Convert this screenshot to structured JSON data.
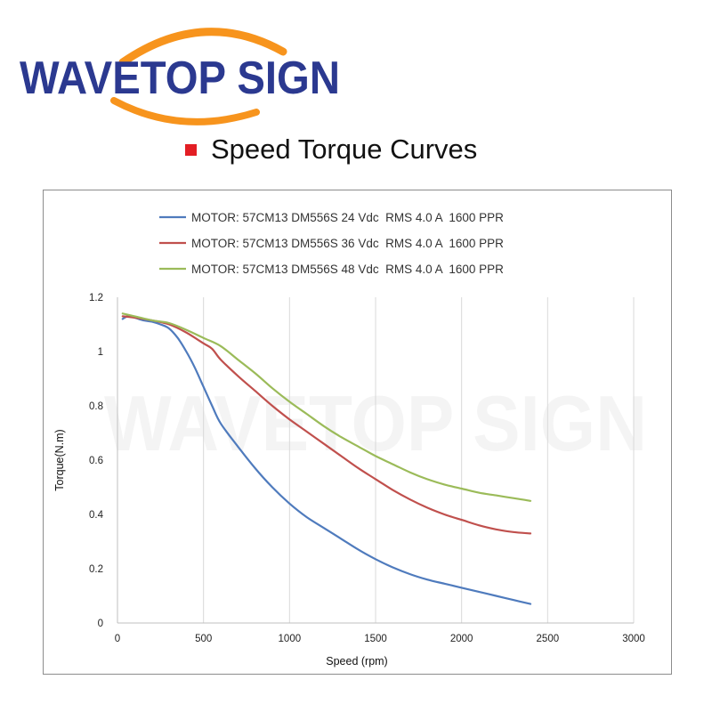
{
  "brand": {
    "name": "WAVETOP SIGN",
    "color": "#2b3990",
    "arc_color": "#f7941d",
    "watermark": "WAVETOP SIGN"
  },
  "heading": {
    "title": "Speed Torque Curves",
    "bullet_color": "#e31e24"
  },
  "chart_data": {
    "type": "line",
    "title": "",
    "xlabel": "Speed (rpm)",
    "ylabel": "Torque(N.m)",
    "xlim": [
      0,
      3000
    ],
    "ylim": [
      0,
      1.2
    ],
    "xticks": [
      0,
      500,
      1000,
      1500,
      2000,
      2500,
      3000
    ],
    "yticks": [
      0,
      0.2,
      0.4,
      0.6,
      0.8,
      1,
      1.2
    ],
    "xtick_labels": [
      "0",
      "500",
      "1000",
      "1500",
      "2000",
      "2500",
      "3000"
    ],
    "ytick_labels": [
      "0",
      "0.2",
      "0.4",
      "0.6",
      "0.8",
      "1",
      "1.2"
    ],
    "grid": "vertical",
    "legend_position": "top",
    "series": [
      {
        "name": "MOTOR: 57CM13 DM556S 24 Vdc  RMS 4.0 A  1600 PPR",
        "color": "#4f7bbd",
        "x": [
          30,
          60,
          100,
          150,
          200,
          250,
          300,
          350,
          400,
          450,
          500,
          550,
          600,
          700,
          800,
          900,
          1000,
          1100,
          1200,
          1300,
          1400,
          1500,
          1600,
          1700,
          1800,
          1900,
          2000,
          2100,
          2200,
          2300,
          2400
        ],
        "y": [
          1.12,
          1.13,
          1.125,
          1.115,
          1.11,
          1.1,
          1.085,
          1.05,
          1.0,
          0.94,
          0.87,
          0.8,
          0.735,
          0.65,
          0.57,
          0.5,
          0.44,
          0.39,
          0.35,
          0.31,
          0.27,
          0.235,
          0.205,
          0.18,
          0.16,
          0.145,
          0.13,
          0.115,
          0.1,
          0.085,
          0.07
        ]
      },
      {
        "name": "MOTOR: 57CM13 DM556S 36 Vdc  RMS 4.0 A  1600 PPR",
        "color": "#c0504d",
        "x": [
          30,
          100,
          200,
          300,
          400,
          500,
          550,
          600,
          700,
          800,
          900,
          1000,
          1100,
          1200,
          1300,
          1400,
          1500,
          1600,
          1700,
          1800,
          1900,
          2000,
          2100,
          2200,
          2300,
          2400
        ],
        "y": [
          1.13,
          1.125,
          1.115,
          1.1,
          1.07,
          1.03,
          1.01,
          0.97,
          0.91,
          0.855,
          0.8,
          0.75,
          0.705,
          0.66,
          0.615,
          0.57,
          0.53,
          0.49,
          0.455,
          0.425,
          0.4,
          0.38,
          0.36,
          0.345,
          0.335,
          0.33
        ]
      },
      {
        "name": "MOTOR: 57CM13 DM556S 48 Vdc  RMS 4.0 A  1600 PPR",
        "color": "#9bbb59",
        "x": [
          30,
          100,
          200,
          300,
          400,
          500,
          600,
          700,
          800,
          900,
          1000,
          1100,
          1200,
          1300,
          1400,
          1500,
          1600,
          1700,
          1800,
          1900,
          2000,
          2100,
          2200,
          2300,
          2400
        ],
        "y": [
          1.14,
          1.13,
          1.115,
          1.105,
          1.08,
          1.05,
          1.02,
          0.97,
          0.92,
          0.865,
          0.815,
          0.77,
          0.725,
          0.685,
          0.65,
          0.615,
          0.585,
          0.555,
          0.53,
          0.51,
          0.495,
          0.48,
          0.47,
          0.46,
          0.45
        ]
      }
    ]
  }
}
